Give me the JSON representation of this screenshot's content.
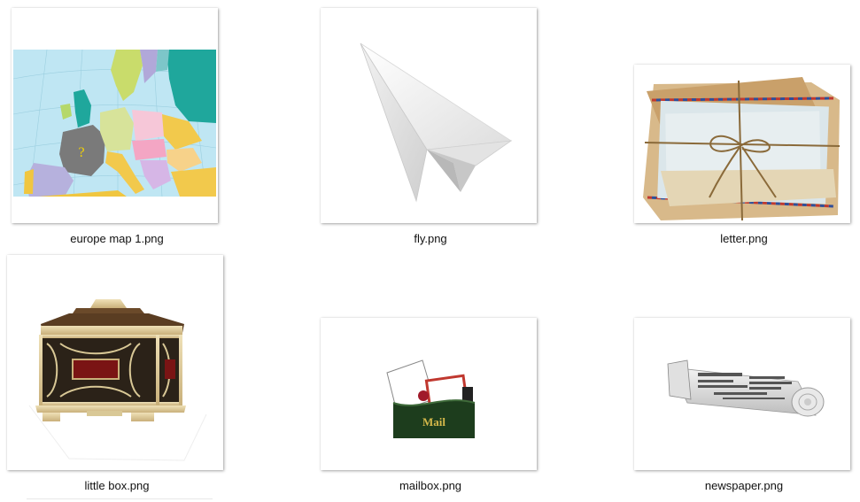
{
  "files": [
    {
      "name": "europe map 1.png",
      "thumb": "europe-map"
    },
    {
      "name": "fly.png",
      "thumb": "paper-plane"
    },
    {
      "name": "letter.png",
      "thumb": "letter-bundle"
    },
    {
      "name": "little box.png",
      "thumb": "ornate-box"
    },
    {
      "name": "mailbox.png",
      "thumb": "mailbox"
    },
    {
      "name": "newspaper.png",
      "thumb": "rolled-newspaper"
    }
  ],
  "mailbox_text": "Mail",
  "map_marker": "?"
}
